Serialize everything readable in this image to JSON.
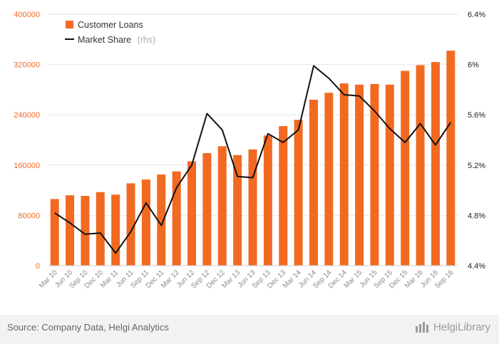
{
  "chart_data": {
    "type": "bar+line",
    "categories": [
      "Mar 10",
      "Jun 10",
      "Sep 10",
      "Dec 10",
      "Mar 11",
      "Jun 11",
      "Sep 11",
      "Dec 11",
      "Mar 12",
      "Jun 12",
      "Sep 12",
      "Dec 12",
      "Mar 13",
      "Jun 13",
      "Sep 13",
      "Dec 13",
      "Mar 14",
      "Jun 14",
      "Sep 14",
      "Dec 14",
      "Mar 15",
      "Jun 15",
      "Sep 15",
      "Dec 15",
      "Mar 16",
      "Jun 16",
      "Sep 16"
    ],
    "series": [
      {
        "name": "Customer Loans",
        "type": "bar",
        "axis": "left",
        "color": "#f26a21",
        "values": [
          106000,
          112000,
          111000,
          117000,
          113000,
          131000,
          137000,
          145000,
          150000,
          166000,
          179000,
          190000,
          176000,
          185000,
          207000,
          222000,
          232000,
          264000,
          275000,
          290000,
          288000,
          289000,
          288000,
          310000,
          319000,
          324000,
          342000
        ]
      },
      {
        "name": "Market Share",
        "name_suffix": "(rhs)",
        "type": "line",
        "axis": "right",
        "color": "#111111",
        "values": [
          4.82,
          4.74,
          4.65,
          4.66,
          4.5,
          4.67,
          4.9,
          4.72,
          5.02,
          5.2,
          5.61,
          5.48,
          5.11,
          5.1,
          5.45,
          5.38,
          5.48,
          5.99,
          5.89,
          5.76,
          5.75,
          5.63,
          5.49,
          5.38,
          5.53,
          5.36,
          5.54
        ]
      }
    ],
    "left_axis": {
      "ylim": [
        0,
        400000
      ],
      "ticks": [
        0,
        80000,
        160000,
        240000,
        320000,
        400000
      ],
      "tick_labels": [
        "0",
        "80000",
        "160000",
        "240000",
        "320000",
        "400000"
      ]
    },
    "right_axis": {
      "ylim": [
        4.4,
        6.4
      ],
      "ticks": [
        4.4,
        4.8,
        5.2,
        5.6,
        6.0,
        6.4
      ],
      "tick_labels": [
        "4.4%",
        "4.8%",
        "5.2%",
        "5.6%",
        "6%",
        "6.4%"
      ]
    },
    "grid": true,
    "legend_position": "top-left"
  },
  "footer": {
    "source": "Source: Company Data, Helgi Analytics",
    "brand": "HelgiLibrary"
  }
}
